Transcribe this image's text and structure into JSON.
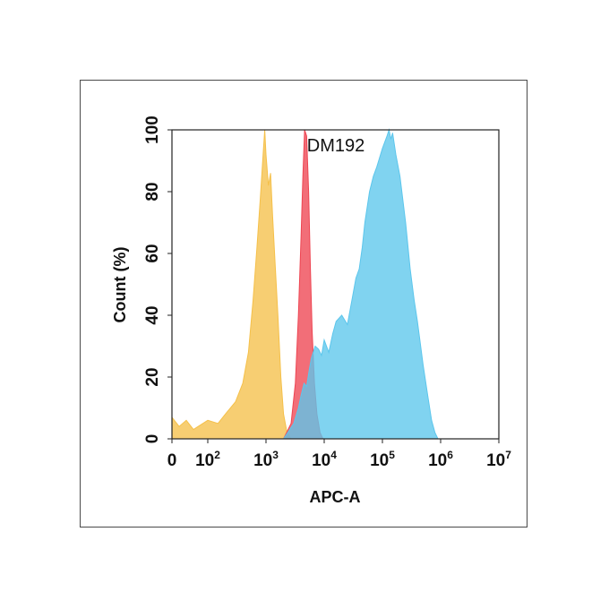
{
  "chart_data": {
    "type": "area",
    "title": "DM192",
    "xlabel": "APC-A",
    "ylabel": "Count  (%)",
    "xscale": "log",
    "xlim": [
      0,
      10000000
    ],
    "ylim": [
      0,
      100
    ],
    "grid": false,
    "legend": "none",
    "x_ticks": [
      {
        "base": "0",
        "exp": ""
      },
      {
        "base": "10",
        "exp": "2"
      },
      {
        "base": "10",
        "exp": "3"
      },
      {
        "base": "10",
        "exp": "4"
      },
      {
        "base": "10",
        "exp": "5"
      },
      {
        "base": "10",
        "exp": "6"
      },
      {
        "base": "10",
        "exp": "7"
      }
    ],
    "y_ticks": [
      "0",
      "20",
      "40",
      "60",
      "80",
      "100"
    ],
    "series": [
      {
        "color": "#f5c04a",
        "points": [
          [
            0,
            7
          ],
          [
            20,
            4
          ],
          [
            40,
            6
          ],
          [
            60,
            3
          ],
          [
            100,
            6
          ],
          [
            150,
            5
          ],
          [
            200,
            8
          ],
          [
            300,
            12
          ],
          [
            400,
            18
          ],
          [
            500,
            28
          ],
          [
            600,
            45
          ],
          [
            700,
            62
          ],
          [
            800,
            78
          ],
          [
            900,
            93
          ],
          [
            950,
            100
          ],
          [
            1000,
            92
          ],
          [
            1100,
            82
          ],
          [
            1200,
            86
          ],
          [
            1300,
            72
          ],
          [
            1450,
            55
          ],
          [
            1600,
            40
          ],
          [
            1800,
            20
          ],
          [
            2000,
            8
          ],
          [
            2300,
            2
          ],
          [
            2700,
            0
          ]
        ]
      },
      {
        "color": "#ee4552",
        "points": [
          [
            2000,
            0
          ],
          [
            2700,
            5
          ],
          [
            3200,
            18
          ],
          [
            3600,
            40
          ],
          [
            4000,
            65
          ],
          [
            4300,
            85
          ],
          [
            4600,
            100
          ],
          [
            5000,
            98
          ],
          [
            5400,
            80
          ],
          [
            5800,
            55
          ],
          [
            6200,
            35
          ],
          [
            6800,
            18
          ],
          [
            7500,
            8
          ],
          [
            8500,
            2
          ],
          [
            9500,
            0
          ]
        ]
      },
      {
        "color": "#5cc6ec",
        "points": [
          [
            2000,
            0
          ],
          [
            3000,
            5
          ],
          [
            3600,
            10
          ],
          [
            4000,
            14
          ],
          [
            4500,
            18
          ],
          [
            5000,
            17
          ],
          [
            5500,
            22
          ],
          [
            6000,
            26
          ],
          [
            7000,
            30
          ],
          [
            8000,
            29
          ],
          [
            9000,
            27
          ],
          [
            10000,
            32
          ],
          [
            12000,
            28
          ],
          [
            14000,
            34
          ],
          [
            16000,
            38
          ],
          [
            20000,
            40
          ],
          [
            25000,
            37
          ],
          [
            30000,
            45
          ],
          [
            35000,
            52
          ],
          [
            40000,
            55
          ],
          [
            45000,
            62
          ],
          [
            50000,
            70
          ],
          [
            60000,
            80
          ],
          [
            70000,
            85
          ],
          [
            80000,
            88
          ],
          [
            100000,
            94
          ],
          [
            120000,
            98
          ],
          [
            130000,
            100
          ],
          [
            140000,
            97
          ],
          [
            150000,
            99
          ],
          [
            170000,
            92
          ],
          [
            200000,
            85
          ],
          [
            250000,
            70
          ],
          [
            300000,
            55
          ],
          [
            350000,
            45
          ],
          [
            400000,
            38
          ],
          [
            500000,
            24
          ],
          [
            600000,
            14
          ],
          [
            700000,
            6
          ],
          [
            800000,
            2
          ],
          [
            900000,
            0
          ]
        ]
      }
    ]
  }
}
